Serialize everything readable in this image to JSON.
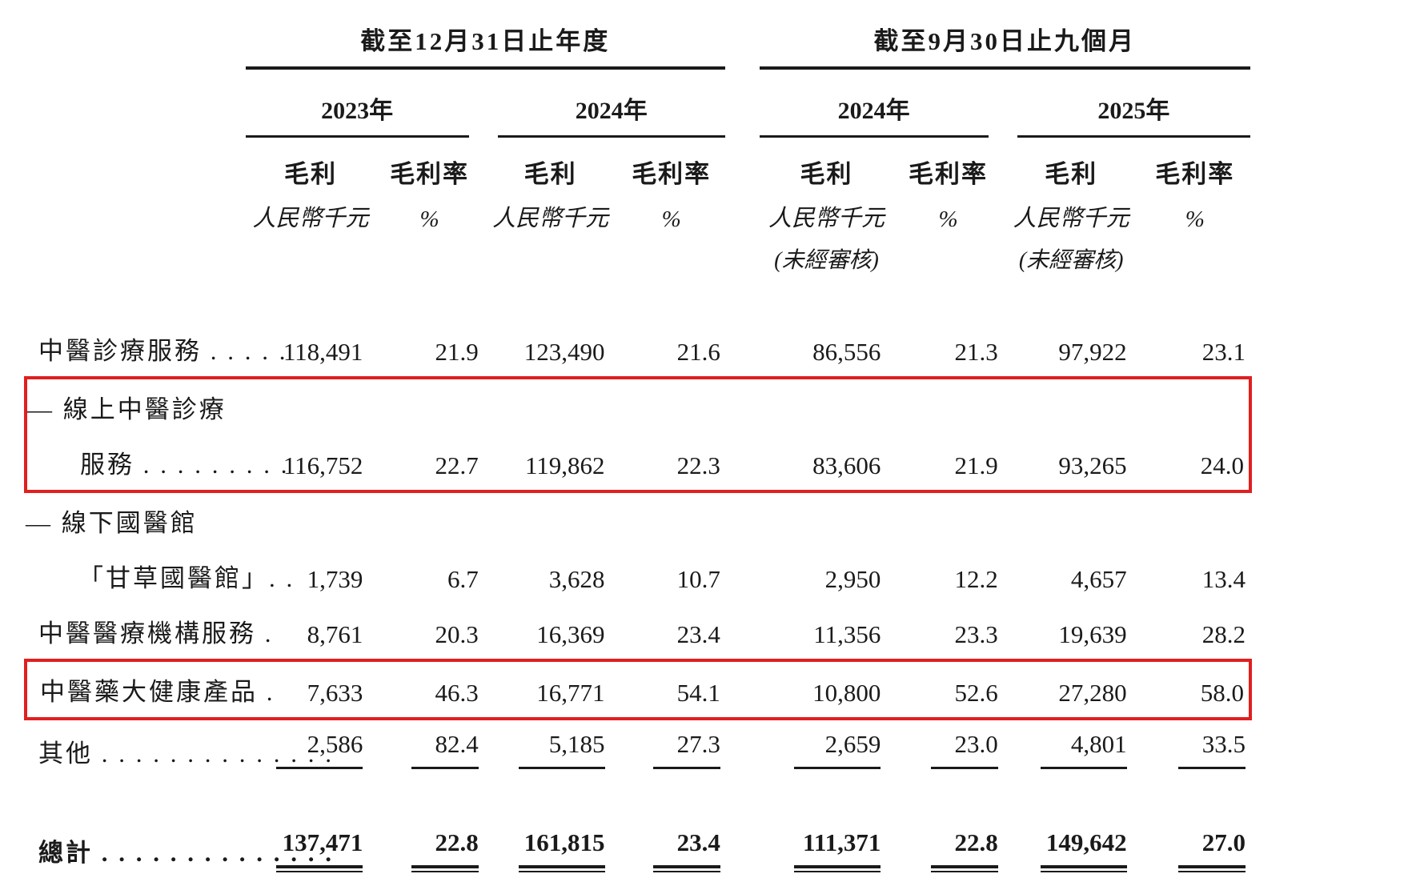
{
  "table": {
    "highlight_color": "#e01f1f",
    "periods": [
      {
        "title": "截至12月31日止年度",
        "years": [
          "2023年",
          "2024年"
        ]
      },
      {
        "title": "截至9月30日止九個月",
        "years": [
          "2024年",
          "2025年"
        ]
      }
    ],
    "columns": [
      {
        "metric": "毛利",
        "unit": "人民幣千元",
        "note": ""
      },
      {
        "metric": "毛利率",
        "unit": "%",
        "note": ""
      },
      {
        "metric": "毛利",
        "unit": "人民幣千元",
        "note": ""
      },
      {
        "metric": "毛利率",
        "unit": "%",
        "note": ""
      },
      {
        "metric": "毛利",
        "unit": "人民幣千元",
        "note": "(未經審核)"
      },
      {
        "metric": "毛利率",
        "unit": "%",
        "note": ""
      },
      {
        "metric": "毛利",
        "unit": "人民幣千元",
        "note": "(未經審核)"
      },
      {
        "metric": "毛利率",
        "unit": "%",
        "note": ""
      }
    ],
    "rows": [
      {
        "id": "tcm-diagnosis-services",
        "lines": [
          {
            "text": "中醫診療服務 . . . . .",
            "indent": "main"
          }
        ],
        "values": [
          "118,491",
          "21.9",
          "123,490",
          "21.6",
          "86,556",
          "21.3",
          "97,922",
          "23.1"
        ]
      },
      {
        "id": "online-tcm-diagnosis-services",
        "boxed": true,
        "lines": [
          {
            "text": "— 線上中醫診療",
            "indent": "hang"
          },
          {
            "text": "服務 . . . . . . . . . .",
            "indent": "sub"
          }
        ],
        "values": [
          "116,752",
          "22.7",
          "119,862",
          "22.3",
          "83,606",
          "21.9",
          "93,265",
          "24.0"
        ]
      },
      {
        "id": "offline-guoyiguan-gancao",
        "lines": [
          {
            "text": "— 線下國醫館",
            "indent": "hang"
          },
          {
            "text": "「甘草國醫館」. .",
            "indent": "sub"
          }
        ],
        "values": [
          "1,739",
          "6.7",
          "3,628",
          "10.7",
          "2,950",
          "12.2",
          "4,657",
          "13.4"
        ]
      },
      {
        "id": "tcm-medical-institution-services",
        "lines": [
          {
            "text": "中醫醫療機構服務 .",
            "indent": "main"
          }
        ],
        "values": [
          "8,761",
          "20.3",
          "16,369",
          "23.4",
          "11,356",
          "23.3",
          "19,639",
          "28.2"
        ]
      },
      {
        "id": "tcm-health-products",
        "boxed": true,
        "lines": [
          {
            "text": "中醫藥大健康產品 .",
            "indent": "main"
          }
        ],
        "values": [
          "7,633",
          "46.3",
          "16,771",
          "54.1",
          "10,800",
          "52.6",
          "27,280",
          "58.0"
        ]
      },
      {
        "id": "others",
        "underline": "single",
        "lines": [
          {
            "text": "其他 . . . . . . . . . . . . . .",
            "indent": "main"
          }
        ],
        "values": [
          "2,586",
          "82.4",
          "5,185",
          "27.3",
          "2,659",
          "23.0",
          "4,801",
          "33.5"
        ]
      },
      {
        "id": "total",
        "bold": true,
        "underline": "double",
        "space_before": 46,
        "lines": [
          {
            "text": "總計 . . . . . . . . . . . . . .",
            "indent": "main"
          }
        ],
        "values": [
          "137,471",
          "22.8",
          "161,815",
          "23.4",
          "111,371",
          "22.8",
          "149,642",
          "27.0"
        ]
      }
    ]
  }
}
